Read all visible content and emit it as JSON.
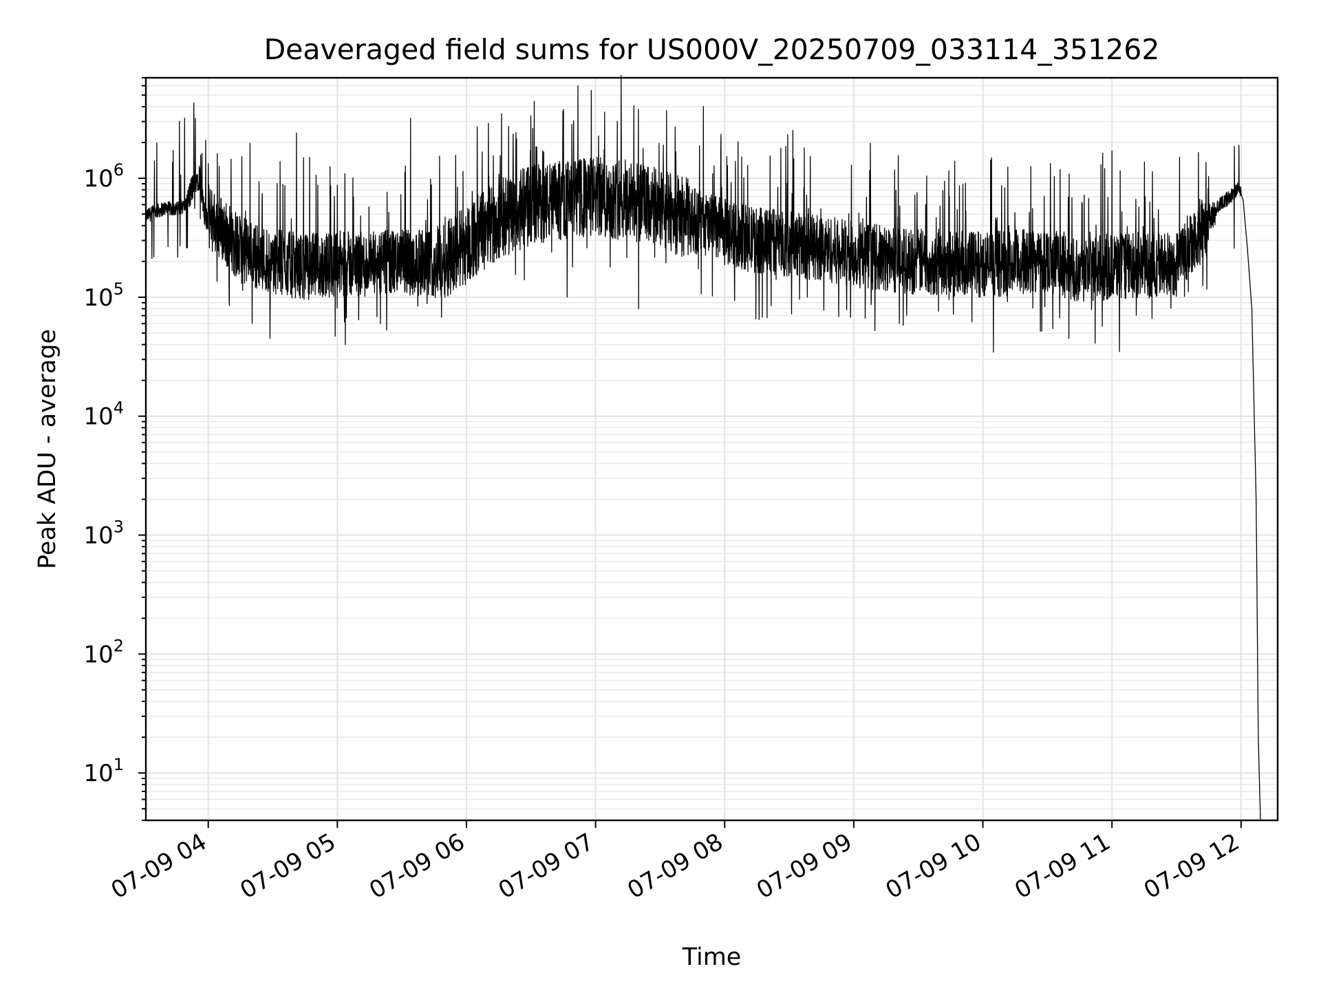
{
  "chart_data": {
    "type": "line",
    "title": "Deaveraged field sums for US000V_20250709_033114_351262",
    "xlabel": "Time",
    "ylabel": "Peak ADU - average",
    "x_scale": "time",
    "y_scale": "log",
    "xlim": [
      "2025-07-09 03:31",
      "2025-07-09 12:17"
    ],
    "ylim": [
      4,
      7000000
    ],
    "x_ticks": [
      {
        "value": "2025-07-09 04:00",
        "label": "07-09 04"
      },
      {
        "value": "2025-07-09 05:00",
        "label": "07-09 05"
      },
      {
        "value": "2025-07-09 06:00",
        "label": "07-09 06"
      },
      {
        "value": "2025-07-09 07:00",
        "label": "07-09 07"
      },
      {
        "value": "2025-07-09 08:00",
        "label": "07-09 08"
      },
      {
        "value": "2025-07-09 09:00",
        "label": "07-09 09"
      },
      {
        "value": "2025-07-09 10:00",
        "label": "07-09 10"
      },
      {
        "value": "2025-07-09 11:00",
        "label": "07-09 11"
      },
      {
        "value": "2025-07-09 12:00",
        "label": "07-09 12"
      }
    ],
    "y_ticks": [
      {
        "value": 10,
        "base": "10",
        "exp": "1"
      },
      {
        "value": 100,
        "base": "10",
        "exp": "2"
      },
      {
        "value": 1000,
        "base": "10",
        "exp": "3"
      },
      {
        "value": 10000,
        "base": "10",
        "exp": "4"
      },
      {
        "value": 100000,
        "base": "10",
        "exp": "5"
      },
      {
        "value": 1000000,
        "base": "10",
        "exp": "6"
      }
    ],
    "grid": true,
    "line_color": "#000000",
    "grid_color": "#e3e3e3",
    "series": [
      {
        "x": [
          "2025-07-09 03:31",
          "2025-07-09 03:35",
          "2025-07-09 03:40",
          "2025-07-09 03:45",
          "2025-07-09 03:50",
          "2025-07-09 03:54",
          "2025-07-09 03:56",
          "2025-07-09 03:58",
          "2025-07-09 04:05",
          "2025-07-09 04:15",
          "2025-07-09 04:30",
          "2025-07-09 04:45",
          "2025-07-09 05:00",
          "2025-07-09 05:15",
          "2025-07-09 05:30",
          "2025-07-09 05:45",
          "2025-07-09 06:00",
          "2025-07-09 06:15",
          "2025-07-09 06:30",
          "2025-07-09 06:45",
          "2025-07-09 07:00",
          "2025-07-09 07:15",
          "2025-07-09 07:30",
          "2025-07-09 07:45",
          "2025-07-09 08:00",
          "2025-07-09 08:15",
          "2025-07-09 08:30",
          "2025-07-09 08:45",
          "2025-07-09 09:00",
          "2025-07-09 09:15",
          "2025-07-09 09:30",
          "2025-07-09 09:45",
          "2025-07-09 10:00",
          "2025-07-09 10:15",
          "2025-07-09 10:30",
          "2025-07-09 10:45",
          "2025-07-09 11:00",
          "2025-07-09 11:15",
          "2025-07-09 11:30",
          "2025-07-09 11:45",
          "2025-07-09 11:50",
          "2025-07-09 11:55",
          "2025-07-09 11:59",
          "2025-07-09 12:01",
          "2025-07-09 12:03",
          "2025-07-09 12:05",
          "2025-07-09 12:07",
          "2025-07-09 12:08",
          "2025-07-09 12:09"
        ],
        "y": [
          480000,
          520000,
          560000,
          550000,
          600000,
          1000000,
          1050000,
          500000,
          400000,
          250000,
          200000,
          180000,
          190000,
          185000,
          200000,
          190000,
          280000,
          450000,
          600000,
          650000,
          700000,
          650000,
          550000,
          450000,
          350000,
          300000,
          280000,
          260000,
          230000,
          210000,
          200000,
          195000,
          190000,
          195000,
          210000,
          170000,
          180000,
          185000,
          190000,
          450000,
          600000,
          700000,
          850000,
          650000,
          250000,
          80000,
          2000,
          20,
          4
        ]
      }
    ],
    "peaks": {
      "x": [
        "2025-07-09 03:54",
        "2025-07-09 04:41",
        "2025-07-09 05:34",
        "2025-07-09 06:05",
        "2025-07-09 07:33",
        "2025-07-09 07:37",
        "2025-07-09 08:37",
        "2025-07-09 11:00",
        "2025-07-09 11:59"
      ],
      "y": [
        3200000,
        2400000,
        3200000,
        2700000,
        3700000,
        2700000,
        1800000,
        1700000,
        1900000
      ]
    },
    "dips": {
      "x": [
        "2025-07-09 04:59",
        "2025-07-09 05:20",
        "2025-07-09 07:20",
        "2025-07-09 08:16",
        "2025-07-09 09:23",
        "2025-07-09 10:40"
      ],
      "y": [
        47000,
        60000,
        80000,
        65000,
        58000,
        45000
      ]
    }
  }
}
